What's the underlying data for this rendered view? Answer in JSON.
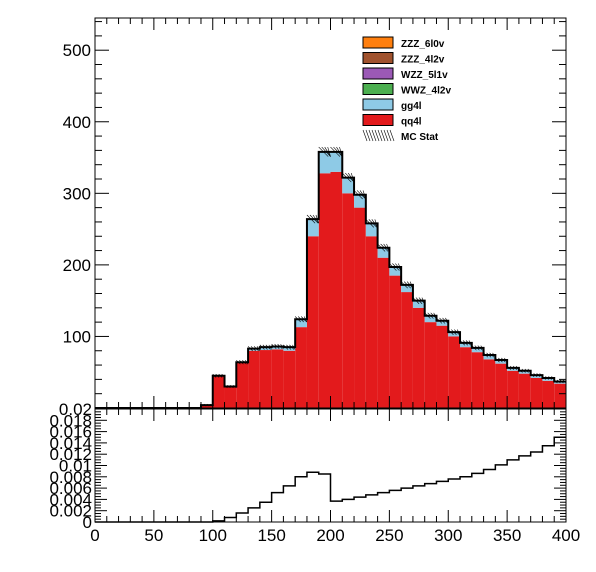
{
  "chart_data": [
    {
      "type": "area",
      "title": "",
      "xlabel": "",
      "ylabel": "",
      "xlim": [
        0,
        400
      ],
      "ylim": [
        0,
        545
      ],
      "grid": false,
      "legend_position": "top-right",
      "bin_edges": [
        0,
        10,
        20,
        30,
        40,
        50,
        60,
        70,
        80,
        90,
        100,
        110,
        120,
        130,
        140,
        150,
        160,
        170,
        180,
        190,
        200,
        210,
        220,
        230,
        240,
        250,
        260,
        270,
        280,
        290,
        300,
        310,
        320,
        330,
        340,
        350,
        360,
        370,
        380,
        390,
        400
      ],
      "stack_order": [
        "qq4l",
        "gg4l",
        "WWZ_4l2v",
        "WZZ_5l1v",
        "ZZZ_4l2v",
        "ZZZ_6l0v"
      ],
      "series": [
        {
          "name": "ZZZ_6l0v",
          "color": "#ff7f0e",
          "values": [
            0,
            0,
            0,
            0,
            0,
            0,
            0,
            0,
            0,
            0,
            0,
            0,
            0,
            0,
            0,
            0,
            0,
            0,
            0,
            0,
            0,
            0,
            0,
            0,
            0,
            0,
            0,
            0,
            0,
            0,
            0,
            0,
            0,
            0,
            0,
            0,
            0,
            0,
            0,
            0
          ]
        },
        {
          "name": "ZZZ_4l2v",
          "color": "#a0522d",
          "values": [
            0,
            0,
            0,
            0,
            0,
            0,
            0,
            0,
            0,
            0,
            0,
            0,
            0,
            0,
            0,
            0,
            0,
            0,
            0,
            0,
            0,
            0,
            0,
            0,
            0,
            0,
            0,
            0,
            0,
            0,
            0,
            0,
            0,
            0,
            0,
            0,
            0,
            0,
            0,
            0
          ]
        },
        {
          "name": "WZZ_5l1v",
          "color": "#9b59b6",
          "values": [
            0,
            0,
            0,
            0,
            0,
            0,
            0,
            0,
            0,
            0,
            0,
            0,
            0,
            0,
            0,
            0,
            0,
            0,
            0,
            0,
            0,
            0,
            0,
            0,
            0,
            0,
            0,
            0,
            0,
            0,
            0,
            0,
            0,
            0,
            0,
            0,
            0,
            0,
            0,
            0
          ]
        },
        {
          "name": "WWZ_4l2v",
          "color": "#4caf50",
          "values": [
            0,
            0,
            0,
            0,
            0,
            0,
            0,
            0,
            0,
            0,
            0,
            0,
            0,
            0,
            0,
            0,
            0,
            0,
            0,
            0,
            0,
            0,
            0,
            0,
            0,
            0,
            0,
            0,
            0,
            0,
            0,
            0,
            0,
            0,
            0,
            0,
            0,
            0,
            0,
            0
          ]
        },
        {
          "name": "gg4l",
          "color": "#8ecae6",
          "values": [
            0,
            0,
            0,
            0,
            0,
            0,
            0,
            0,
            0,
            0,
            1,
            0,
            1,
            3,
            4,
            4,
            5,
            11,
            24,
            30,
            28,
            22,
            18,
            18,
            14,
            12,
            10,
            10,
            9,
            7,
            6,
            6,
            6,
            6,
            5,
            4,
            4,
            4,
            4,
            3
          ]
        },
        {
          "name": "qq4l",
          "color": "#e31a1c",
          "values": [
            0,
            0,
            0,
            0,
            0,
            0,
            0,
            0,
            0,
            4,
            44,
            30,
            63,
            80,
            81,
            82,
            80,
            113,
            240,
            328,
            330,
            300,
            280,
            240,
            210,
            185,
            162,
            140,
            120,
            115,
            100,
            85,
            78,
            68,
            62,
            52,
            48,
            42,
            38,
            34
          ]
        }
      ],
      "mc_stat_label": "MC Stat"
    },
    {
      "type": "line",
      "title": "",
      "xlabel": "",
      "ylabel": "",
      "xlim": [
        0,
        400
      ],
      "ylim": [
        0,
        0.02
      ],
      "x_ticks": [
        "0",
        "50",
        "100",
        "150",
        "200",
        "250",
        "300",
        "350",
        "400"
      ],
      "y_ticks": [
        "0",
        "0.002",
        "0.004",
        "0.006",
        "0.008",
        "0.01",
        "0.012",
        "0.014",
        "0.016",
        "0.018",
        "0.02"
      ],
      "bin_edges": [
        0,
        10,
        20,
        30,
        40,
        50,
        60,
        70,
        80,
        90,
        100,
        110,
        120,
        130,
        140,
        150,
        160,
        170,
        180,
        190,
        200,
        210,
        220,
        230,
        240,
        250,
        260,
        270,
        280,
        290,
        300,
        310,
        320,
        330,
        340,
        350,
        360,
        370,
        380,
        390,
        400
      ],
      "values": [
        0,
        0,
        0,
        0,
        0,
        0,
        0,
        0,
        0,
        0,
        0.0002,
        0.0008,
        0.0016,
        0.0025,
        0.0035,
        0.0052,
        0.0064,
        0.008,
        0.0088,
        0.0085,
        0.0037,
        0.004,
        0.0044,
        0.0048,
        0.0052,
        0.0056,
        0.006,
        0.0064,
        0.0068,
        0.0072,
        0.0076,
        0.008,
        0.0086,
        0.0093,
        0.0101,
        0.011,
        0.0117,
        0.0124,
        0.0135,
        0.015
      ]
    }
  ],
  "axes": {
    "top_y_ticks": [
      "0",
      "100",
      "200",
      "300",
      "400",
      "500"
    ]
  }
}
